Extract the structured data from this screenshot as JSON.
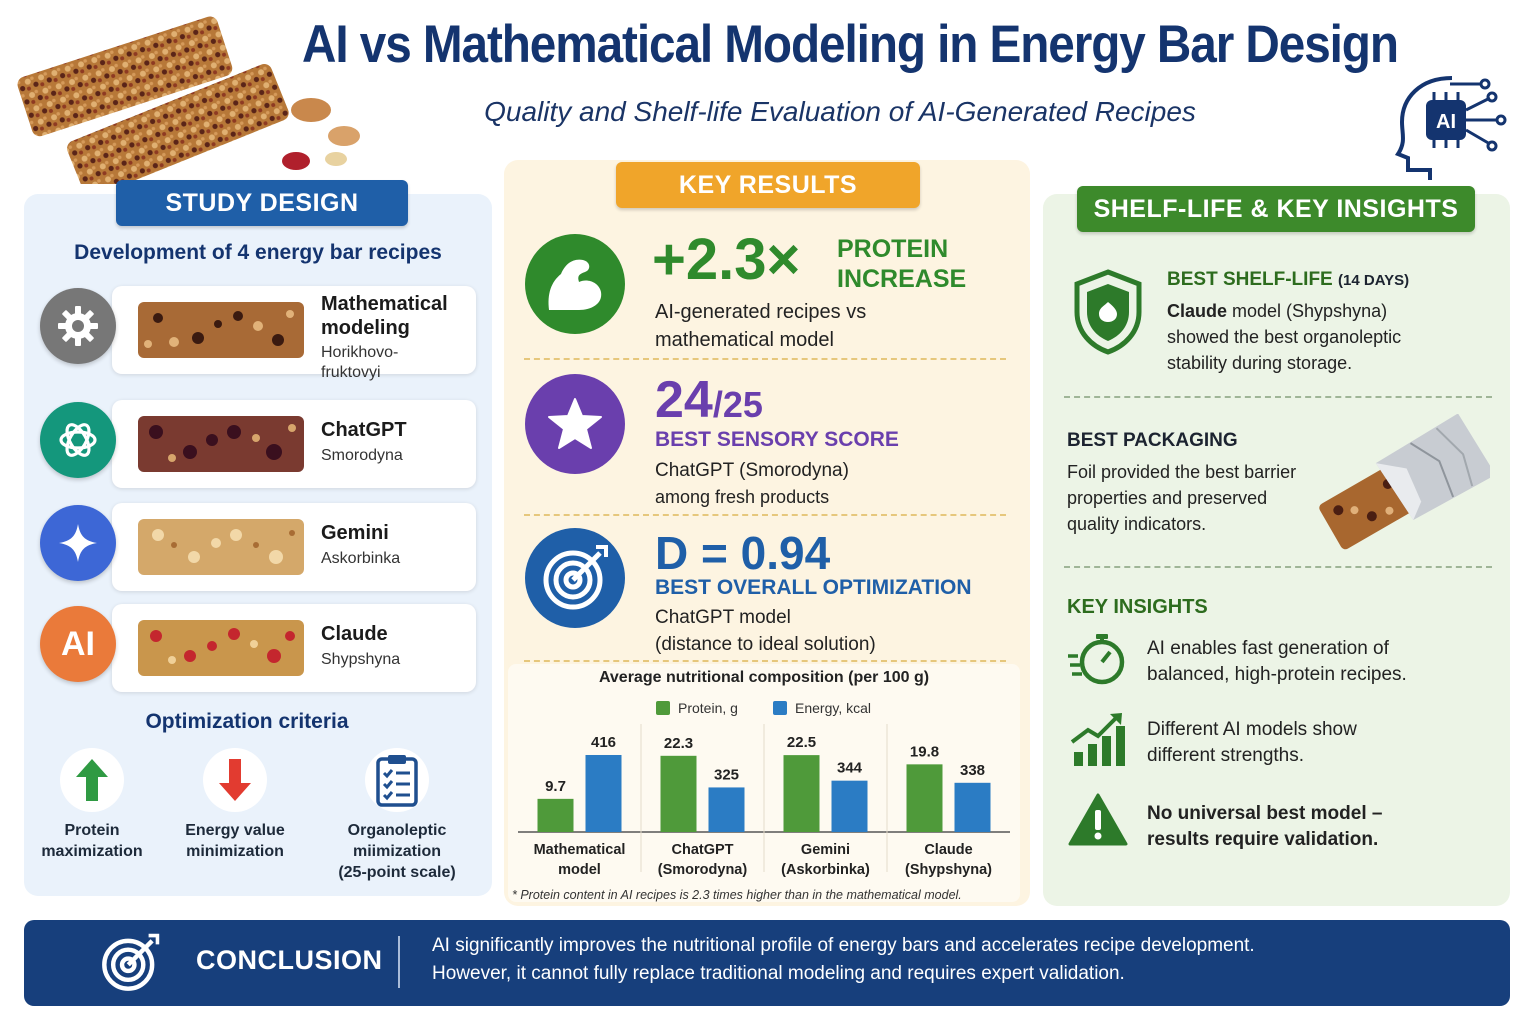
{
  "header": {
    "title": "AI vs Mathematical Modeling in Energy Bar Design",
    "subtitle": "Quality and Shelf-life Evaluation of AI-Generated Recipes",
    "ai_badge": "AI"
  },
  "study_design": {
    "tag": "STUDY DESIGN",
    "heading": "Development of 4 energy bar recipes",
    "recipes": [
      {
        "name": "Mathematical modeling",
        "sub": "Horikhovo-fruktovyi",
        "icon": "gear-icon",
        "color": "#777777"
      },
      {
        "name": "ChatGPT",
        "sub": "Smorodyna",
        "icon": "chatgpt-logo-icon",
        "color": "#14977c"
      },
      {
        "name": "Gemini",
        "sub": "Askorbinka",
        "icon": "gemini-sparkle-icon",
        "color": "#3d67d6"
      },
      {
        "name": "Claude",
        "sub": "Shypshyna",
        "icon": "claude-ai-icon",
        "icon_text": "AI",
        "color": "#ea7a3a"
      }
    ],
    "criteria_heading": "Optimization criteria",
    "criteria": [
      {
        "line1": "Protein",
        "line2": "maximization",
        "icon": "arrow-up-icon"
      },
      {
        "line1": "Energy value",
        "line2": "minimization",
        "icon": "arrow-down-icon"
      },
      {
        "line1": "Organoleptic",
        "line2": "miimization",
        "line3": "(25-point scale)",
        "icon": "clipboard-checklist-icon"
      }
    ]
  },
  "key_results": {
    "tag": "KEY RESULTS",
    "protein": {
      "value": "+2.3×",
      "label1": "PROTEIN",
      "label2": "INCREASE",
      "text1": "AI-generated recipes vs",
      "text2": "mathematical model",
      "icon": "flexed-arm-icon"
    },
    "sensory": {
      "value": "24",
      "suffix": "/25",
      "label": "BEST SENSORY SCORE",
      "text1": "ChatGPT (Smorodyna)",
      "text2": "among fresh products",
      "icon": "star-icon"
    },
    "optimization": {
      "value": "D = 0.94",
      "label": "BEST OVERALL OPTIMIZATION",
      "text1": "ChatGPT model",
      "text2": "(distance to ideal solution)",
      "icon": "target-icon"
    },
    "footnote": "* Protein content in AI recipes is 2.3 times higher than in the mathematical model."
  },
  "chart_data": {
    "type": "bar",
    "title": "Average nutritional composition (per 100 g)",
    "categories": [
      [
        "Mathematical",
        "model"
      ],
      [
        "ChatGPT",
        "(Smorodyna)"
      ],
      [
        "Gemini",
        "(Askorbinka)"
      ],
      [
        "Claude",
        "(Shypshyna)"
      ]
    ],
    "series": [
      {
        "name": "Protein, g",
        "values": [
          9.7,
          22.3,
          22.5,
          19.8
        ],
        "labels": [
          "9.7",
          "22.3",
          "22.5",
          "19.8"
        ],
        "color": "#4f9a3a"
      },
      {
        "name": "Energy, kcal",
        "values": [
          416,
          325,
          344,
          338
        ],
        "labels": [
          "416",
          "325",
          "344",
          "338"
        ],
        "color": "#2b7cc4"
      }
    ],
    "grid": false,
    "legend": "top"
  },
  "shelf_life": {
    "tag": "SHELF-LIFE & KEY INSIGHTS",
    "best_shelf": {
      "title": "BEST SHELF-LIFE",
      "days": "(14 DAYS)",
      "bold": "Claude",
      "line1_rest": " model (Shypshyna)",
      "line2": "showed the best organoleptic",
      "line3": "stability during storage.",
      "icon": "shield-icon"
    },
    "packaging": {
      "title": "BEST PACKAGING",
      "line1": "Foil provided the best barrier",
      "line2": "properties and preserved",
      "line3": "quality indicators.",
      "icon": "foil-wrapped-bar-icon"
    },
    "insights_title": "KEY INSIGHTS",
    "insights": [
      {
        "line1": "AI enables fast generation of",
        "line2": "balanced, high-protein recipes.",
        "icon": "stopwatch-icon",
        "bold": false
      },
      {
        "line1": "Different AI models show",
        "line2": "different strengths.",
        "icon": "growth-chart-icon",
        "bold": false
      },
      {
        "line1": "No universal best model –",
        "line2": "results require validation.",
        "icon": "warning-icon",
        "bold": true
      }
    ]
  },
  "conclusion": {
    "title": "CONCLUSION",
    "line1": "AI significantly improves the nutritional profile of energy bars and accelerates recipe development.",
    "line2": "However, it cannot fully replace traditional modeling and requires expert validation.",
    "icon": "target-icon"
  },
  "colors": {
    "navy": "#14346f",
    "blue_tag": "#1f5fa8",
    "gold_tag": "#f0a52a",
    "green_tag": "#3d8a2b",
    "protein_green": "#2f8a2c",
    "sensory_purple": "#6a3fad",
    "optimization_blue": "#1f5fa8"
  }
}
